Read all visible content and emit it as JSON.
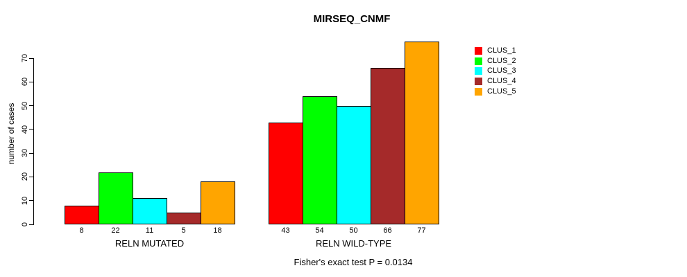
{
  "chart_data": {
    "type": "bar",
    "title": "MIRSEQ_CNMF",
    "xlabel": "",
    "ylabel": "number of cases",
    "ylim": [
      0,
      70
    ],
    "yticks": [
      0,
      10,
      20,
      30,
      40,
      50,
      60,
      70
    ],
    "categories": [
      "RELN MUTATED",
      "RELN WILD-TYPE"
    ],
    "series": [
      {
        "name": "CLUS_1",
        "color": "#FF0000",
        "values": [
          8,
          43
        ]
      },
      {
        "name": "CLUS_2",
        "color": "#00FF00",
        "values": [
          22,
          54
        ]
      },
      {
        "name": "CLUS_3",
        "color": "#00FFFF",
        "values": [
          11,
          50
        ]
      },
      {
        "name": "CLUS_4",
        "color": "#A52A2A",
        "values": [
          5,
          66
        ]
      },
      {
        "name": "CLUS_5",
        "color": "#FFA500",
        "values": [
          18,
          77
        ]
      }
    ],
    "bar_value_labels": [
      [
        8,
        22,
        11,
        5,
        18
      ],
      [
        43,
        54,
        50,
        66,
        77
      ]
    ],
    "legend_position": "topright",
    "grid": false,
    "annotation": "Fisher's exact test P = 0.0134"
  }
}
